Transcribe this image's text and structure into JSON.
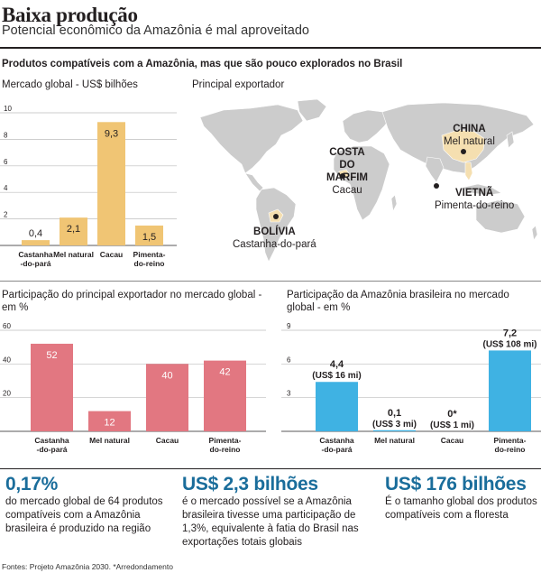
{
  "header": {
    "title": "Baixa produção",
    "subtitle": "Potencial econômico da Amazônia é mal aproveitado",
    "section_title": "Produtos compatíveis com a Amazônia, mas que são pouco explorados no Brasil"
  },
  "colors": {
    "bar_yellow": "#f0c574",
    "bar_pink": "#e27781",
    "bar_blue": "#3fb2e3",
    "map_land": "#cccccc",
    "map_highlight": "#f5dfb0",
    "stat_blue": "#1a6d9b"
  },
  "map": {
    "title": "Principal exportador",
    "labels": [
      {
        "country": "CHINA",
        "product": "Mel natural"
      },
      {
        "country": "COSTA DO MARFIM",
        "product": "Cacau"
      },
      {
        "country": "VIETNÃ",
        "product": "Pimenta-do-reino"
      },
      {
        "country": "BOLÍVIA",
        "product": "Castanha-do-pará"
      }
    ]
  },
  "stats": [
    {
      "value": "0,17%",
      "text": "do mercado global de 64 produtos compatíveis com a Amazônia brasileira é produzido na região"
    },
    {
      "value": "US$ 2,3 bilhões",
      "text": "é o mercado possível se a Amazônia brasileira tivesse uma participação de 1,3%, equivalente à fatia do Brasil nas exportações totais globais"
    },
    {
      "value": "US$ 176 bilhões",
      "text": "É o tamanho global dos produtos compatíveis com a floresta"
    }
  ],
  "footer": "Fontes: Projeto Amazônia 2030. *Arredondamento",
  "chart_data": [
    {
      "type": "bar",
      "title": "Mercado global - US$ bilhões",
      "categories": [
        "Castanha -do-pará",
        "Mel natural",
        "Cacau",
        "Pimenta- do-reino"
      ],
      "values": [
        0.4,
        2.1,
        9.3,
        1.5
      ],
      "value_labels": [
        "0,4",
        "2,1",
        "9,3",
        "1,5"
      ],
      "yticks": [
        2,
        4,
        6,
        8,
        10
      ],
      "ylim": [
        0,
        10
      ],
      "color": "#f0c574"
    },
    {
      "type": "bar",
      "title": "Participação do principal exportador no mercado global - em %",
      "categories": [
        "Castanha -do-pará",
        "Mel natural",
        "Cacau",
        "Pimenta- do-reino"
      ],
      "values": [
        52,
        12,
        40,
        42
      ],
      "value_labels": [
        "52",
        "12",
        "40",
        "42"
      ],
      "yticks": [
        20,
        40,
        60
      ],
      "ylim": [
        0,
        60
      ],
      "color": "#e27781"
    },
    {
      "type": "bar",
      "title": "Participação da Amazônia brasileira no mercado global - em %",
      "categories": [
        "Castanha -do-pará",
        "Mel natural",
        "Cacau",
        "Pimenta- do-reino"
      ],
      "values": [
        4.4,
        0.1,
        0,
        7.2
      ],
      "value_labels": [
        "4,4",
        "0,1",
        "0*",
        "7,2"
      ],
      "sub_labels": [
        "(US$ 16 mi)",
        "(US$ 3 mi)",
        "(US$ 1 mi)",
        "(US$ 108 mi)"
      ],
      "yticks": [
        3,
        6,
        9
      ],
      "ylim": [
        0,
        9
      ],
      "color": "#3fb2e3"
    }
  ]
}
